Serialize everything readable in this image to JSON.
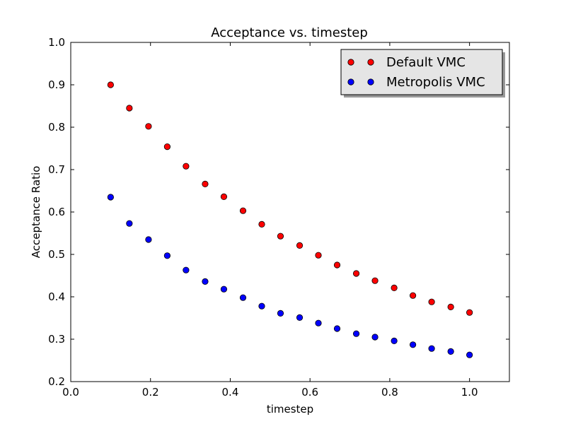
{
  "chart_data": {
    "type": "scatter",
    "title": "Acceptance vs. timestep",
    "xlabel": "timestep",
    "ylabel": "Acceptance Ratio",
    "xlim": [
      0.0,
      1.1
    ],
    "ylim": [
      0.2,
      1.0
    ],
    "xticks": [
      "0.0",
      "0.2",
      "0.4",
      "0.6",
      "0.8",
      "1.0"
    ],
    "yticks": [
      "0.2",
      "0.3",
      "0.4",
      "0.5",
      "0.6",
      "0.7",
      "0.8",
      "0.9",
      "1.0"
    ],
    "grid": false,
    "legend_position": "top-right",
    "x": [
      0.1,
      0.147,
      0.195,
      0.242,
      0.289,
      0.337,
      0.384,
      0.432,
      0.479,
      0.526,
      0.574,
      0.621,
      0.668,
      0.716,
      0.763,
      0.811,
      0.858,
      0.905,
      0.953,
      1.0
    ],
    "series": [
      {
        "name": "Default VMC",
        "color": "#ff0000",
        "values": [
          0.9,
          0.845,
          0.802,
          0.754,
          0.708,
          0.666,
          0.636,
          0.603,
          0.571,
          0.543,
          0.521,
          0.498,
          0.475,
          0.455,
          0.438,
          0.421,
          0.403,
          0.388,
          0.376,
          0.363
        ]
      },
      {
        "name": "Metropolis VMC",
        "color": "#0000ff",
        "values": [
          0.635,
          0.573,
          0.535,
          0.497,
          0.463,
          0.436,
          0.418,
          0.398,
          0.378,
          0.361,
          0.351,
          0.338,
          0.325,
          0.313,
          0.305,
          0.296,
          0.287,
          0.278,
          0.271,
          0.263
        ]
      }
    ]
  }
}
